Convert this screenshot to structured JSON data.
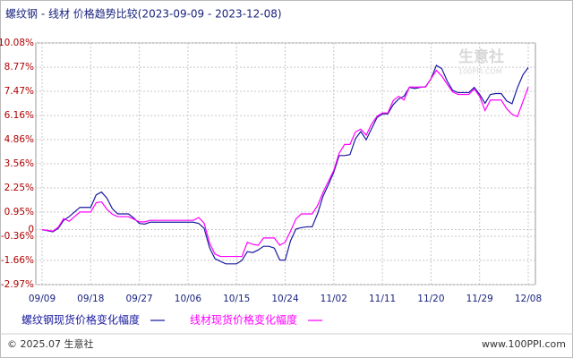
{
  "chart_data": {
    "type": "line",
    "title": "螺纹钢 - 线材 价格趋势比较(2023-09-09 - 2023-12-08)",
    "categories": [
      "09/09",
      null,
      null,
      null,
      null,
      null,
      null,
      null,
      null,
      "09/18",
      null,
      null,
      null,
      null,
      null,
      null,
      null,
      null,
      "09/27",
      null,
      null,
      null,
      null,
      null,
      null,
      null,
      null,
      "10/06",
      null,
      null,
      null,
      null,
      null,
      null,
      null,
      null,
      "10/15",
      null,
      null,
      null,
      null,
      null,
      null,
      null,
      null,
      "10/24",
      null,
      null,
      null,
      null,
      null,
      null,
      null,
      null,
      "11/02",
      null,
      null,
      null,
      null,
      null,
      null,
      null,
      null,
      "11/11",
      null,
      null,
      null,
      null,
      null,
      null,
      null,
      null,
      "11/20",
      null,
      null,
      null,
      null,
      null,
      null,
      null,
      null,
      "11/29",
      null,
      null,
      null,
      null,
      null,
      null,
      null,
      null,
      "12/08"
    ],
    "series": [
      {
        "name": "螺纹钢现货价格变化幅度",
        "color": "#1a1aa0",
        "values": [
          0,
          -0.06,
          -0.12,
          0.07,
          0.5,
          0.7,
          0.95,
          1.2,
          1.2,
          1.2,
          1.87,
          2.03,
          1.7,
          1.13,
          0.85,
          0.85,
          0.85,
          0.62,
          0.33,
          0.3,
          0.4,
          0.4,
          0.4,
          0.4,
          0.4,
          0.4,
          0.4,
          0.4,
          0.4,
          0.33,
          0.07,
          -0.97,
          -1.57,
          -1.71,
          -1.85,
          -1.85,
          -1.85,
          -1.66,
          -1.19,
          -1.24,
          -1.1,
          -0.9,
          -0.9,
          -1.0,
          -1.64,
          -1.65,
          -0.6,
          0.03,
          0.11,
          0.15,
          0.15,
          0.86,
          1.8,
          2.42,
          3.1,
          4.0,
          4.0,
          4.05,
          4.9,
          5.3,
          4.85,
          5.45,
          6.05,
          6.25,
          6.25,
          6.75,
          7.05,
          7.2,
          7.68,
          7.62,
          7.68,
          7.72,
          8.14,
          8.87,
          8.69,
          8.02,
          7.52,
          7.4,
          7.4,
          7.4,
          7.68,
          7.3,
          6.82,
          7.3,
          7.35,
          7.35,
          6.95,
          6.8,
          7.66,
          8.35,
          8.75
        ]
      },
      {
        "name": "线材现货价格变化幅度",
        "color": "#ff00ff",
        "values": [
          0,
          -0.04,
          -0.08,
          0.13,
          0.6,
          0.45,
          0.7,
          0.95,
          0.95,
          0.95,
          1.45,
          1.5,
          1.1,
          0.83,
          0.7,
          0.7,
          0.7,
          0.56,
          0.42,
          0.42,
          0.5,
          0.5,
          0.5,
          0.5,
          0.5,
          0.5,
          0.5,
          0.5,
          0.5,
          0.65,
          0.35,
          -0.72,
          -1.32,
          -1.45,
          -1.45,
          -1.45,
          -1.45,
          -1.45,
          -0.68,
          -0.8,
          -0.85,
          -0.45,
          -0.45,
          -0.45,
          -0.85,
          -0.68,
          -0.08,
          0.58,
          0.85,
          0.85,
          0.85,
          1.3,
          2.0,
          2.6,
          3.2,
          4.13,
          4.6,
          4.6,
          5.27,
          5.43,
          5.1,
          5.7,
          6.12,
          6.3,
          6.3,
          6.97,
          7.2,
          7.0,
          7.7,
          7.7,
          7.7,
          7.7,
          8.15,
          8.6,
          8.29,
          7.85,
          7.44,
          7.3,
          7.3,
          7.3,
          7.6,
          7.2,
          6.43,
          7.0,
          7.0,
          7.0,
          6.53,
          6.23,
          6.1,
          6.9,
          7.7
        ]
      }
    ],
    "ylim": [
      -2.97,
      10.08
    ],
    "yticks": [
      {
        "value": -2.97,
        "label": "-2.97%"
      },
      {
        "value": -1.66,
        "label": "-1.66%"
      },
      {
        "value": -0.36,
        "label": "-0.36%"
      },
      0,
      {
        "value": 0.95,
        "label": "0.95%"
      },
      {
        "value": 2.25,
        "label": "2.25%"
      },
      {
        "value": 3.56,
        "label": "3.56%"
      },
      {
        "value": 4.86,
        "label": "4.86%"
      },
      {
        "value": 6.16,
        "label": "6.16%"
      },
      {
        "value": 7.47,
        "label": "7.47%"
      },
      {
        "value": 8.77,
        "label": "8.77%"
      },
      {
        "value": 10.08,
        "label": "10.08%"
      }
    ],
    "grid": true,
    "watermark": {
      "name": "生意社",
      "site": "100PPI.COM"
    }
  },
  "footer": {
    "copyright": "© 2025.07 生意社",
    "site": "www.100PPI.com"
  }
}
